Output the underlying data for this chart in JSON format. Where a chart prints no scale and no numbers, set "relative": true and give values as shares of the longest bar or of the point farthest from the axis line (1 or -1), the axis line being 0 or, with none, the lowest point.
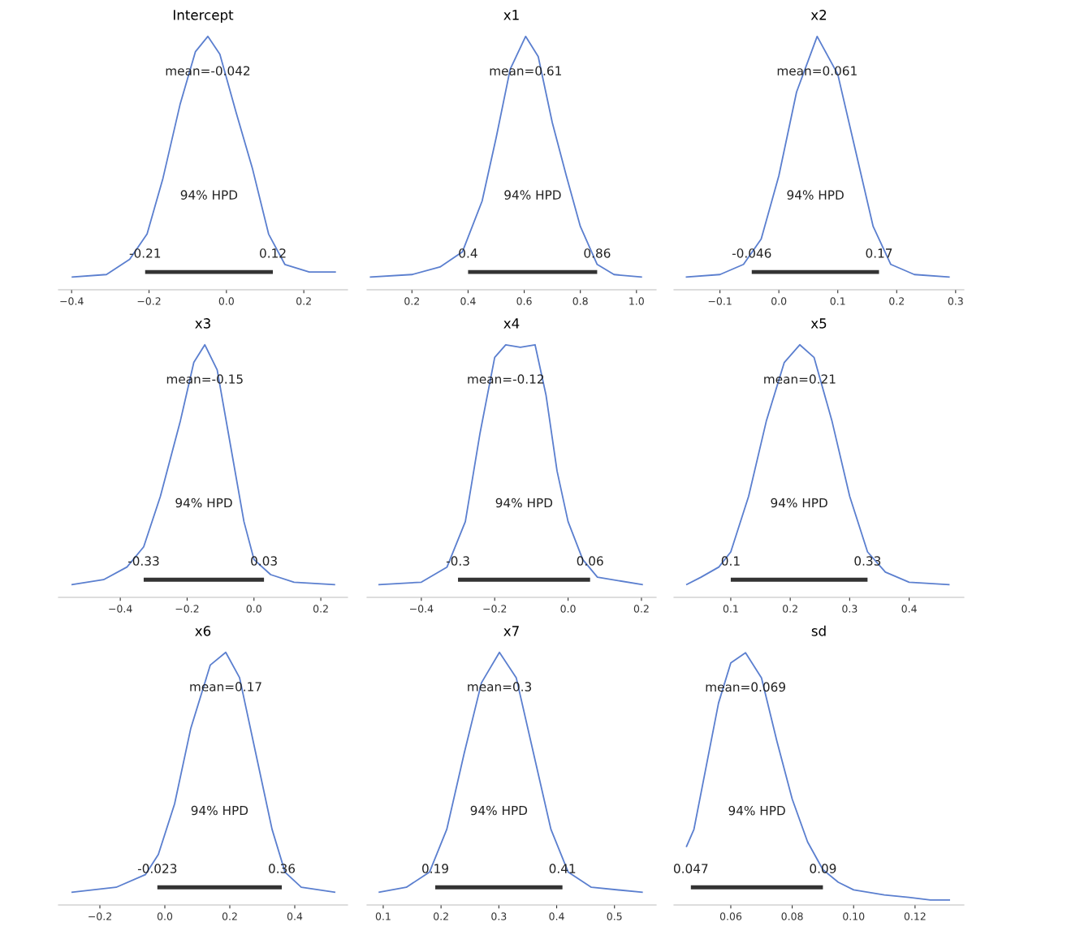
{
  "chart_data": [
    {
      "type": "line",
      "title": "Intercept",
      "relative": true,
      "tick_labels": "x",
      "xlim": [
        -0.434,
        0.313
      ],
      "xticks": [
        {
          "value": -0.4,
          "label": "−0.4"
        },
        {
          "value": -0.2,
          "label": "−0.2"
        },
        {
          "value": 0,
          "label": "0.0"
        },
        {
          "value": 0.2,
          "label": "0.2"
        }
      ],
      "series": [
        {
          "color": "#5b7fcf",
          "x": [
            -0.4,
            -0.31,
            -0.25,
            -0.205,
            -0.164,
            -0.12,
            -0.08,
            -0.048,
            -0.017,
            0.025,
            0.067,
            0.109,
            0.151,
            0.214,
            0.283
          ],
          "values": [
            0.05,
            0.06,
            0.12,
            0.22,
            0.44,
            0.73,
            0.94,
            1.0,
            0.93,
            0.7,
            0.48,
            0.22,
            0.1,
            0.07,
            0.07
          ]
        },
        {
          "color": "#333333",
          "x": [
            -0.21,
            0.12
          ],
          "values": [
            0.07,
            0.07
          ]
        }
      ],
      "annotations": [
        "mean=-0.042",
        "94% HPD",
        "-0.21",
        "0.12"
      ]
    },
    {
      "type": "line",
      "title": "x1",
      "relative": true,
      "tick_labels": "x",
      "xlim": [
        0.04,
        1.07
      ],
      "xticks": [
        {
          "value": 0.2,
          "label": "0.2"
        },
        {
          "value": 0.4,
          "label": "0.4"
        },
        {
          "value": 0.6,
          "label": "0.6"
        },
        {
          "value": 0.8,
          "label": "0.8"
        },
        {
          "value": 1.0,
          "label": "1.0"
        }
      ],
      "series": [
        {
          "color": "#5b7fcf",
          "x": [
            0.05,
            0.2,
            0.3,
            0.38,
            0.45,
            0.5,
            0.55,
            0.605,
            0.65,
            0.7,
            0.75,
            0.8,
            0.86,
            0.92,
            1.02
          ],
          "values": [
            0.05,
            0.06,
            0.09,
            0.15,
            0.35,
            0.6,
            0.87,
            1.0,
            0.92,
            0.66,
            0.45,
            0.25,
            0.1,
            0.06,
            0.05
          ]
        },
        {
          "color": "#333333",
          "x": [
            0.4,
            0.86
          ],
          "values": [
            0.07,
            0.07
          ]
        }
      ],
      "annotations": [
        "mean=0.61",
        "94% HPD",
        "0.4",
        "0.86"
      ]
    },
    {
      "type": "line",
      "title": "x2",
      "relative": true,
      "tick_labels": "x",
      "xlim": [
        -0.178,
        0.314
      ],
      "xticks": [
        {
          "value": -0.1,
          "label": "−0.1"
        },
        {
          "value": 0,
          "label": "0.0"
        },
        {
          "value": 0.1,
          "label": "0.1"
        },
        {
          "value": 0.2,
          "label": "0.2"
        },
        {
          "value": 0.3,
          "label": "0.3"
        }
      ],
      "series": [
        {
          "color": "#5b7fcf",
          "x": [
            -0.158,
            -0.1,
            -0.06,
            -0.03,
            0.0,
            0.03,
            0.065,
            0.1,
            0.13,
            0.16,
            0.19,
            0.23,
            0.29
          ],
          "values": [
            0.05,
            0.06,
            0.1,
            0.2,
            0.45,
            0.78,
            1.0,
            0.85,
            0.55,
            0.25,
            0.1,
            0.06,
            0.05
          ]
        },
        {
          "color": "#333333",
          "x": [
            -0.046,
            0.17
          ],
          "values": [
            0.07,
            0.07
          ]
        }
      ],
      "annotations": [
        "mean=0.061",
        "94% HPD",
        "-0.046",
        "0.17"
      ]
    },
    {
      "type": "line",
      "title": "x3",
      "relative": true,
      "tick_labels": "x",
      "xlim": [
        -0.585,
        0.28
      ],
      "xticks": [
        {
          "value": -0.4,
          "label": "−0.4"
        },
        {
          "value": -0.2,
          "label": "−0.2"
        },
        {
          "value": 0,
          "label": "0.0"
        },
        {
          "value": 0.2,
          "label": "0.2"
        }
      ],
      "series": [
        {
          "color": "#5b7fcf",
          "x": [
            -0.546,
            -0.45,
            -0.38,
            -0.33,
            -0.28,
            -0.22,
            -0.18,
            -0.147,
            -0.11,
            -0.07,
            -0.03,
            0.0,
            0.05,
            0.12,
            0.243
          ],
          "values": [
            0.05,
            0.07,
            0.12,
            0.2,
            0.4,
            0.7,
            0.93,
            1.0,
            0.9,
            0.6,
            0.3,
            0.15,
            0.09,
            0.06,
            0.05
          ]
        },
        {
          "color": "#333333",
          "x": [
            -0.33,
            0.03
          ],
          "values": [
            0.07,
            0.07
          ]
        }
      ],
      "annotations": [
        "mean=-0.15",
        "94% HPD",
        "-0.33",
        "0.03"
      ]
    },
    {
      "type": "line",
      "title": "x4",
      "relative": true,
      "tick_labels": "x",
      "xlim": [
        -0.548,
        0.24
      ],
      "xticks": [
        {
          "value": -0.4,
          "label": "−0.4"
        },
        {
          "value": -0.2,
          "label": "−0.2"
        },
        {
          "value": 0,
          "label": "0.0"
        },
        {
          "value": 0.2,
          "label": "0.2"
        }
      ],
      "series": [
        {
          "color": "#5b7fcf",
          "x": [
            -0.517,
            -0.4,
            -0.33,
            -0.28,
            -0.24,
            -0.2,
            -0.17,
            -0.13,
            -0.09,
            -0.06,
            -0.03,
            0.0,
            0.04,
            0.08,
            0.204
          ],
          "values": [
            0.05,
            0.06,
            0.12,
            0.3,
            0.65,
            0.95,
            1.0,
            0.99,
            1.0,
            0.8,
            0.5,
            0.3,
            0.15,
            0.08,
            0.05
          ]
        },
        {
          "color": "#333333",
          "x": [
            -0.3,
            0.06
          ],
          "values": [
            0.07,
            0.07
          ]
        }
      ],
      "annotations": [
        "mean=-0.12",
        "94% HPD",
        "-0.3",
        "0.06"
      ]
    },
    {
      "type": "line",
      "title": "x5",
      "relative": true,
      "tick_labels": "x",
      "xlim": [
        0.0045,
        0.492
      ],
      "xticks": [
        {
          "value": 0.1,
          "label": "0.1"
        },
        {
          "value": 0.2,
          "label": "0.2"
        },
        {
          "value": 0.3,
          "label": "0.3"
        },
        {
          "value": 0.4,
          "label": "0.4"
        }
      ],
      "series": [
        {
          "color": "#5b7fcf",
          "x": [
            0.025,
            0.05,
            0.08,
            0.1,
            0.13,
            0.16,
            0.19,
            0.216,
            0.24,
            0.27,
            0.3,
            0.33,
            0.36,
            0.4,
            0.468
          ],
          "values": [
            0.05,
            0.08,
            0.12,
            0.18,
            0.4,
            0.7,
            0.93,
            1.0,
            0.95,
            0.7,
            0.4,
            0.18,
            0.1,
            0.06,
            0.05
          ]
        },
        {
          "color": "#333333",
          "x": [
            0.1,
            0.33
          ],
          "values": [
            0.07,
            0.07
          ]
        }
      ],
      "annotations": [
        "mean=0.21",
        "94% HPD",
        "0.1",
        "0.33"
      ]
    },
    {
      "type": "line",
      "title": "x6",
      "relative": true,
      "tick_labels": "x",
      "xlim": [
        -0.3275,
        0.5625
      ],
      "xticks": [
        {
          "value": -0.2,
          "label": "−0.2"
        },
        {
          "value": 0,
          "label": "0.0"
        },
        {
          "value": 0.2,
          "label": "0.2"
        },
        {
          "value": 0.4,
          "label": "0.4"
        }
      ],
      "series": [
        {
          "color": "#5b7fcf",
          "x": [
            -0.2875,
            -0.15,
            -0.06,
            -0.02,
            0.03,
            0.08,
            0.14,
            0.1875,
            0.23,
            0.28,
            0.33,
            0.37,
            0.42,
            0.525
          ],
          "values": [
            0.05,
            0.07,
            0.12,
            0.2,
            0.4,
            0.7,
            0.95,
            1.0,
            0.9,
            0.6,
            0.3,
            0.13,
            0.07,
            0.05
          ]
        },
        {
          "color": "#333333",
          "x": [
            -0.023,
            0.36
          ],
          "values": [
            0.07,
            0.07
          ]
        }
      ],
      "annotations": [
        "mean=0.17",
        "94% HPD",
        "-0.023",
        "0.36"
      ]
    },
    {
      "type": "line",
      "title": "x7",
      "relative": true,
      "tick_labels": "x",
      "xlim": [
        0.072,
        0.572
      ],
      "xticks": [
        {
          "value": 0.1,
          "label": "0.1"
        },
        {
          "value": 0.2,
          "label": "0.2"
        },
        {
          "value": 0.3,
          "label": "0.3"
        },
        {
          "value": 0.4,
          "label": "0.4"
        },
        {
          "value": 0.5,
          "label": "0.5"
        }
      ],
      "series": [
        {
          "color": "#5b7fcf",
          "x": [
            0.092,
            0.14,
            0.18,
            0.21,
            0.24,
            0.27,
            0.301,
            0.33,
            0.36,
            0.39,
            0.42,
            0.46,
            0.549
          ],
          "values": [
            0.05,
            0.07,
            0.13,
            0.3,
            0.6,
            0.88,
            1.0,
            0.9,
            0.6,
            0.3,
            0.13,
            0.07,
            0.05
          ]
        },
        {
          "color": "#333333",
          "x": [
            0.19,
            0.41
          ],
          "values": [
            0.07,
            0.07
          ]
        }
      ],
      "annotations": [
        "mean=0.3",
        "94% HPD",
        "0.19",
        "0.41"
      ]
    },
    {
      "type": "line",
      "title": "sd",
      "relative": true,
      "tick_labels": "x",
      "xlim": [
        0.0415,
        0.1359
      ],
      "xticks": [
        {
          "value": 0.06,
          "label": "0.06"
        },
        {
          "value": 0.08,
          "label": "0.08"
        },
        {
          "value": 0.1,
          "label": "0.10"
        },
        {
          "value": 0.12,
          "label": "0.12"
        }
      ],
      "series": [
        {
          "color": "#5b7fcf",
          "x": [
            0.0455,
            0.048,
            0.052,
            0.056,
            0.06,
            0.0648,
            0.07,
            0.075,
            0.08,
            0.085,
            0.09,
            0.095,
            0.1,
            0.11,
            0.118,
            0.125,
            0.1314
          ],
          "values": [
            0.23,
            0.3,
            0.55,
            0.8,
            0.96,
            1.0,
            0.9,
            0.65,
            0.42,
            0.25,
            0.14,
            0.09,
            0.06,
            0.04,
            0.03,
            0.02,
            0.02
          ]
        },
        {
          "color": "#333333",
          "x": [
            0.047,
            0.09
          ],
          "values": [
            0.07,
            0.07
          ]
        }
      ],
      "annotations": [
        "mean=0.069",
        "94% HPD",
        "0.047",
        "0.09"
      ]
    }
  ]
}
